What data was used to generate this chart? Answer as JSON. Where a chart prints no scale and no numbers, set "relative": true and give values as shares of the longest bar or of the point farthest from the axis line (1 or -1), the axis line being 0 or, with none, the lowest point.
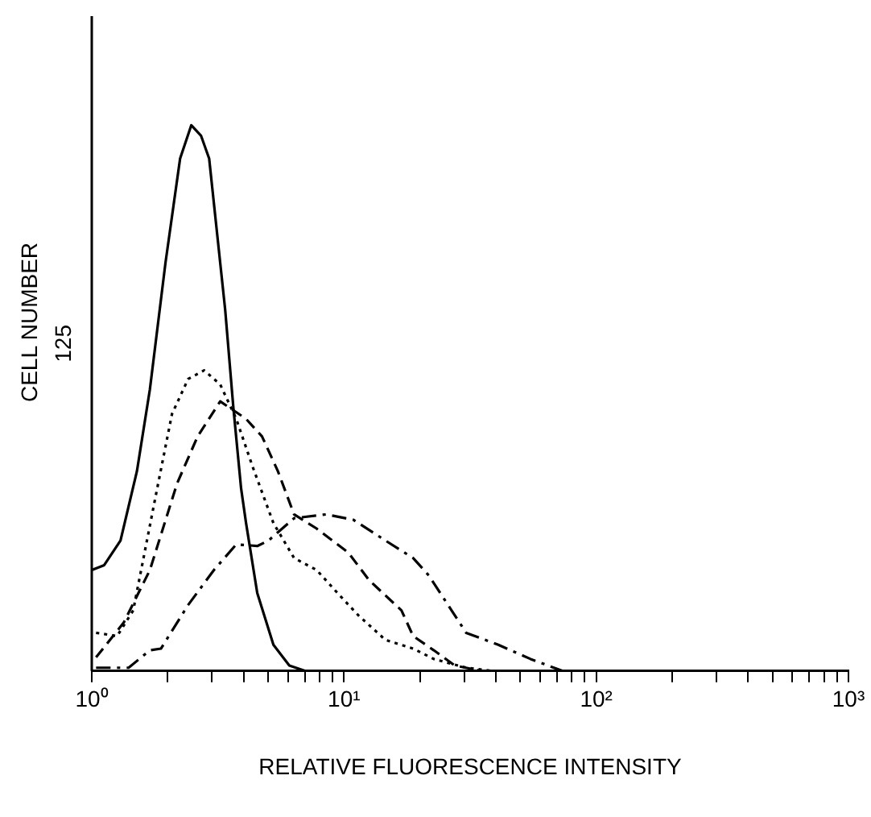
{
  "chart_data": {
    "type": "line",
    "relative": true,
    "log": "x",
    "xlabel": "RELATIVE FLUORESCENCE INTENSITY",
    "ylabel": "CELL NUMBER",
    "xlim": [
      1,
      1000
    ],
    "xticks": [
      {
        "value": 1,
        "label": "10⁰"
      },
      {
        "value": 2,
        "label": null
      },
      {
        "value": 3,
        "label": null
      },
      {
        "value": 4,
        "label": null
      },
      {
        "value": 5,
        "label": null
      },
      {
        "value": 6,
        "label": null
      },
      {
        "value": 7,
        "label": null
      },
      {
        "value": 8,
        "label": null
      },
      {
        "value": 9,
        "label": null
      },
      {
        "value": 10,
        "label": "10¹"
      },
      {
        "value": 20,
        "label": null
      },
      {
        "value": 30,
        "label": null
      },
      {
        "value": 40,
        "label": null
      },
      {
        "value": 50,
        "label": null
      },
      {
        "value": 60,
        "label": null
      },
      {
        "value": 70,
        "label": null
      },
      {
        "value": 80,
        "label": null
      },
      {
        "value": 90,
        "label": null
      },
      {
        "value": 100,
        "label": "10²"
      },
      {
        "value": 200,
        "label": null
      },
      {
        "value": 300,
        "label": null
      },
      {
        "value": 400,
        "label": null
      },
      {
        "value": 500,
        "label": null
      },
      {
        "value": 600,
        "label": null
      },
      {
        "value": 700,
        "label": null
      },
      {
        "value": 800,
        "label": null
      },
      {
        "value": 900,
        "label": null
      },
      {
        "value": 1000,
        "label": "10³"
      }
    ],
    "annotations": [
      "125"
    ],
    "grid": false,
    "legend": false,
    "series": [
      {
        "color": "#000000",
        "line_style": "solid",
        "x": [
          1,
          1.12,
          1.3,
          1.51,
          1.7,
          1.96,
          2.24,
          2.48,
          2.71,
          2.92,
          3.38,
          3.64,
          3.91,
          4.09,
          4.53,
          5.25,
          6.07,
          7.03
        ],
        "values": [
          0.185,
          0.194,
          0.239,
          0.366,
          0.516,
          0.748,
          0.939,
          1,
          0.981,
          0.939,
          0.662,
          0.484,
          0.334,
          0.271,
          0.143,
          0.048,
          0.01,
          0
        ]
      },
      {
        "color": "#000000",
        "line_style": "dotted",
        "x": [
          1.04,
          1.26,
          1.46,
          1.8,
          2.08,
          2.41,
          2.79,
          3.23,
          3.74,
          4.33,
          5.25,
          6.34,
          7.79,
          9.42,
          11.4,
          14.6,
          18.8,
          22.7,
          30.5,
          39.1
        ],
        "values": [
          0.07,
          0.064,
          0.111,
          0.325,
          0.471,
          0.535,
          0.551,
          0.525,
          0.462,
          0.376,
          0.271,
          0.207,
          0.185,
          0.143,
          0.102,
          0.057,
          0.041,
          0.022,
          0.006,
          0
        ]
      },
      {
        "color": "#000000",
        "line_style": "dashed",
        "x": [
          1.04,
          1.34,
          1.7,
          2.18,
          2.63,
          3.23,
          4.09,
          4.73,
          5.47,
          6.34,
          7.79,
          10.4,
          12.6,
          16.9,
          18.8,
          22.7,
          27.5,
          35.3
        ],
        "values": [
          0.025,
          0.089,
          0.185,
          0.344,
          0.43,
          0.494,
          0.462,
          0.43,
          0.366,
          0.287,
          0.261,
          0.217,
          0.166,
          0.111,
          0.064,
          0.038,
          0.01,
          0
        ]
      },
      {
        "color": "#000000",
        "line_style": "dashdot",
        "x": [
          1.04,
          1.4,
          1.7,
          1.88,
          2.41,
          3.05,
          3.74,
          4.53,
          5.02,
          6.34,
          8.51,
          10.9,
          14.6,
          18.8,
          21.7,
          30.5,
          40.9,
          54.9,
          73.7
        ],
        "values": [
          0.006,
          0.006,
          0.038,
          0.041,
          0.121,
          0.185,
          0.232,
          0.229,
          0.239,
          0.28,
          0.287,
          0.277,
          0.239,
          0.207,
          0.175,
          0.07,
          0.048,
          0.022,
          0
        ]
      }
    ]
  }
}
